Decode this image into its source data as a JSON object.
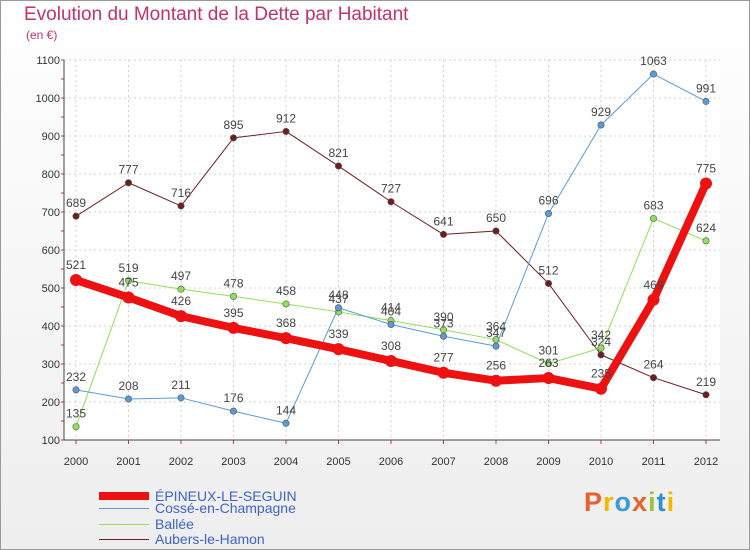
{
  "chart": {
    "title": "Evolution du Montant de la Dette par Habitant",
    "unit": "(en €)"
  },
  "brand": {
    "text": "Proxiti",
    "colors": [
      "#e8612c",
      "#f5b800",
      "#3a9bd9",
      "#e8612c",
      "#9ac53b",
      "#2f8fd1",
      "#f5b800"
    ]
  },
  "chart_data": {
    "type": "line",
    "title": "Evolution du Montant de la Dette par Habitant",
    "subtitle": "(en €)",
    "xlabel": "",
    "ylabel": "",
    "ylim": [
      100,
      1100
    ],
    "yticks": [
      100,
      200,
      300,
      400,
      500,
      600,
      700,
      800,
      900,
      1000,
      1100
    ],
    "categories": [
      "2000",
      "2001",
      "2002",
      "2003",
      "2004",
      "2005",
      "2006",
      "2007",
      "2008",
      "2009",
      "2010",
      "2011",
      "2012"
    ],
    "grid": true,
    "legend_position": "bottom-left",
    "series": [
      {
        "name": "Aubers-le-Hamon",
        "color": "#6b1f1f",
        "width": 1,
        "values": [
          689,
          777,
          716,
          895,
          912,
          821,
          727,
          641,
          650,
          512,
          324,
          264,
          219
        ],
        "labels": [
          "689",
          "777",
          "716",
          "895",
          "912",
          "821",
          "727",
          "641",
          "650",
          "512",
          "324",
          "264",
          "219"
        ]
      },
      {
        "name": "Ballée",
        "color": "#8fe05a",
        "width": 1,
        "values": [
          135,
          519,
          497,
          478,
          458,
          437,
          414,
          390,
          364,
          301,
          342,
          683,
          624
        ],
        "labels": [
          "135",
          "519",
          "497",
          "478",
          "458",
          "437",
          "414",
          "390",
          "364",
          "301",
          "342",
          "683",
          "624"
        ]
      },
      {
        "name": "Cossé-en-Champagne",
        "color": "#5b9bd5",
        "width": 1,
        "values": [
          232,
          208,
          211,
          176,
          144,
          448,
          404,
          373,
          347,
          696,
          929,
          1063,
          991
        ],
        "labels": [
          "232",
          "208",
          "211",
          "176",
          "144",
          "448",
          "404",
          "373",
          "347",
          "696",
          "929",
          "1063",
          "991"
        ]
      },
      {
        "name": "ÉPINEUX-LE-SEGUIN",
        "color": "#ee1111",
        "width": 8,
        "values": [
          521,
          475,
          426,
          395,
          368,
          339,
          308,
          277,
          256,
          263,
          235,
          469,
          775
        ],
        "labels": [
          "521",
          "475",
          "426",
          "395",
          "368",
          "339",
          "308",
          "277",
          "256",
          "263",
          "235",
          "469",
          "775"
        ]
      }
    ],
    "legend": [
      "ÉPINEUX-LE-SEGUIN",
      "Cossé-en-Champagne",
      "Ballée",
      "Aubers-le-Hamon"
    ]
  }
}
